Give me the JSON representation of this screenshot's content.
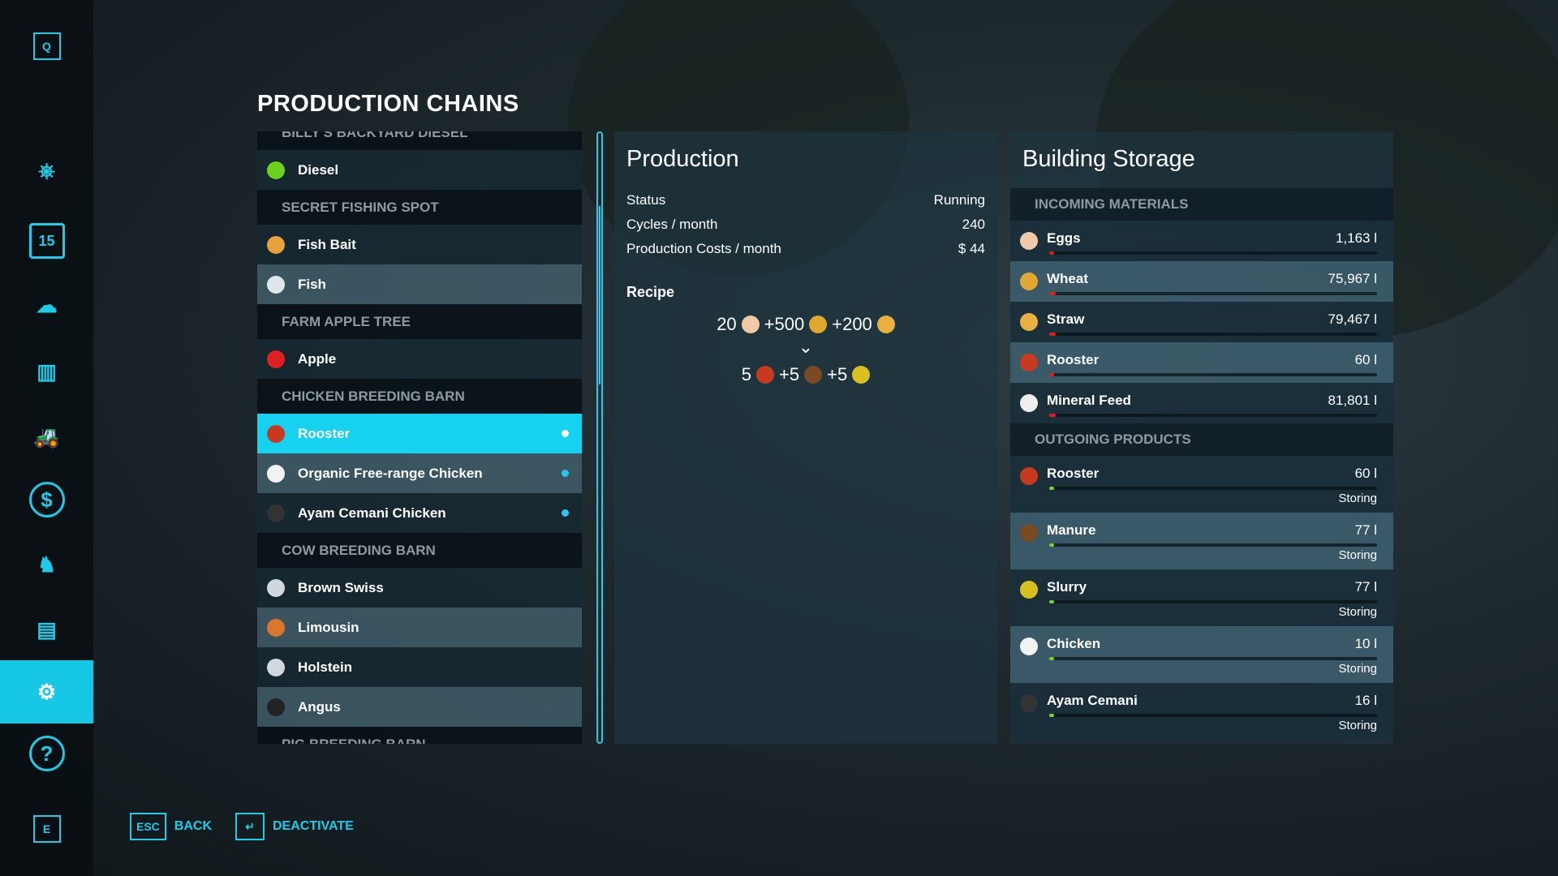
{
  "sidebar": {
    "top_key": "Q",
    "bottom_key": "E",
    "items": [
      {
        "icon": "steering-wheel-icon"
      },
      {
        "icon": "calendar-icon",
        "label": "15"
      },
      {
        "icon": "weather-icon"
      },
      {
        "icon": "statistics-icon"
      },
      {
        "icon": "tractor-icon"
      },
      {
        "icon": "finance-icon"
      },
      {
        "icon": "animals-icon"
      },
      {
        "icon": "contracts-icon"
      },
      {
        "icon": "production-icon",
        "selected": true
      },
      {
        "icon": "help-icon"
      }
    ]
  },
  "title": "PRODUCTION CHAINS",
  "list": [
    {
      "type": "header",
      "label": "BILLY'S BACKYARD DIESEL"
    },
    {
      "type": "item",
      "label": "Diesel",
      "icon": "diesel-icon",
      "color": "#6bd11e"
    },
    {
      "type": "header",
      "label": "SECRET FISHING SPOT"
    },
    {
      "type": "item",
      "label": "Fish Bait",
      "icon": "fish-bait-icon",
      "color": "#e8a23c"
    },
    {
      "type": "item",
      "label": "Fish",
      "icon": "fish-icon",
      "color": "#dfe6ea",
      "alt": true
    },
    {
      "type": "header",
      "label": "FARM APPLE TREE"
    },
    {
      "type": "item",
      "label": "Apple",
      "icon": "apple-icon",
      "color": "#e02020"
    },
    {
      "type": "header",
      "label": "CHICKEN BREEDING BARN"
    },
    {
      "type": "item",
      "label": "Rooster",
      "icon": "rooster-icon",
      "color": "#c83a20",
      "selected": true,
      "active": true
    },
    {
      "type": "item",
      "label": "Organic Free-range Chicken",
      "icon": "chicken-icon",
      "color": "#f2f2f2",
      "alt": true,
      "active": true
    },
    {
      "type": "item",
      "label": "Ayam Cemani Chicken",
      "icon": "ayam-cemani-icon",
      "color": "#333",
      "active": true
    },
    {
      "type": "header",
      "label": "COW BREEDING BARN"
    },
    {
      "type": "item",
      "label": "Brown Swiss",
      "icon": "milk-bottle-icon",
      "color": "#cfd8dc"
    },
    {
      "type": "item",
      "label": "Limousin",
      "icon": "cow-icon",
      "color": "#d9782a",
      "alt": true
    },
    {
      "type": "item",
      "label": "Holstein",
      "icon": "milk-bottle-icon",
      "color": "#cfd8dc"
    },
    {
      "type": "item",
      "label": "Angus",
      "icon": "cow-icon",
      "color": "#222",
      "alt": true
    },
    {
      "type": "header",
      "label": "PIG BREEDING BARN"
    }
  ],
  "production": {
    "title": "Production",
    "rows": [
      {
        "label": "Status",
        "value": "Running"
      },
      {
        "label": "Cycles / month",
        "value": "240"
      },
      {
        "label": "Production Costs / month",
        "value": "$ 44"
      }
    ],
    "recipe_label": "Recipe",
    "inputs": [
      {
        "amount": "20",
        "icon": "eggs-icon",
        "color": "#f0c9a8"
      },
      {
        "amount": "+500",
        "icon": "wheat-icon",
        "color": "#e0a830"
      },
      {
        "amount": "+200",
        "icon": "straw-icon",
        "color": "#e8b040"
      }
    ],
    "arrow": "⌄",
    "outputs": [
      {
        "amount": "5",
        "icon": "rooster-icon",
        "color": "#c83a20"
      },
      {
        "amount": "+5",
        "icon": "manure-icon",
        "color": "#7a4a22"
      },
      {
        "amount": "+5",
        "icon": "slurry-icon",
        "color": "#d8c020"
      }
    ]
  },
  "storage": {
    "title": "Building Storage",
    "incoming_label": "INCOMING MATERIALS",
    "outgoing_label": "OUTGOING PRODUCTS",
    "incoming": [
      {
        "name": "Eggs",
        "value": "1,163 l",
        "fill": 0.01,
        "color": "#f0c9a8"
      },
      {
        "name": "Wheat",
        "value": "75,967 l",
        "fill": 0.02,
        "color": "#e0a830"
      },
      {
        "name": "Straw",
        "value": "79,467 l",
        "fill": 0.02,
        "color": "#e8b040"
      },
      {
        "name": "Rooster",
        "value": "60 l",
        "fill": 0.005,
        "color": "#c83a20"
      },
      {
        "name": "Mineral Feed",
        "value": "81,801 l",
        "fill": 0.02,
        "color": "#eee"
      }
    ],
    "outgoing": [
      {
        "name": "Rooster",
        "value": "60 l",
        "status": "Storing",
        "fill": 0.01,
        "color": "#c83a20"
      },
      {
        "name": "Manure",
        "value": "77 l",
        "status": "Storing",
        "fill": 0.01,
        "color": "#7a4a22"
      },
      {
        "name": "Slurry",
        "value": "77 l",
        "status": "Storing",
        "fill": 0.01,
        "color": "#d8c020"
      },
      {
        "name": "Chicken",
        "value": "10 l",
        "status": "Storing",
        "fill": 0.005,
        "color": "#f2f2f2"
      },
      {
        "name": "Ayam Cemani",
        "value": "16 l",
        "status": "Storing",
        "fill": 0.005,
        "color": "#333"
      }
    ],
    "in_bar_color": "#e02020",
    "out_bar_color": "#7ed321"
  },
  "footer": {
    "back_key": "ESC",
    "back_label": "BACK",
    "deactivate_key": "↵",
    "deactivate_label": "DEACTIVATE"
  },
  "accent": "#16c8e6"
}
